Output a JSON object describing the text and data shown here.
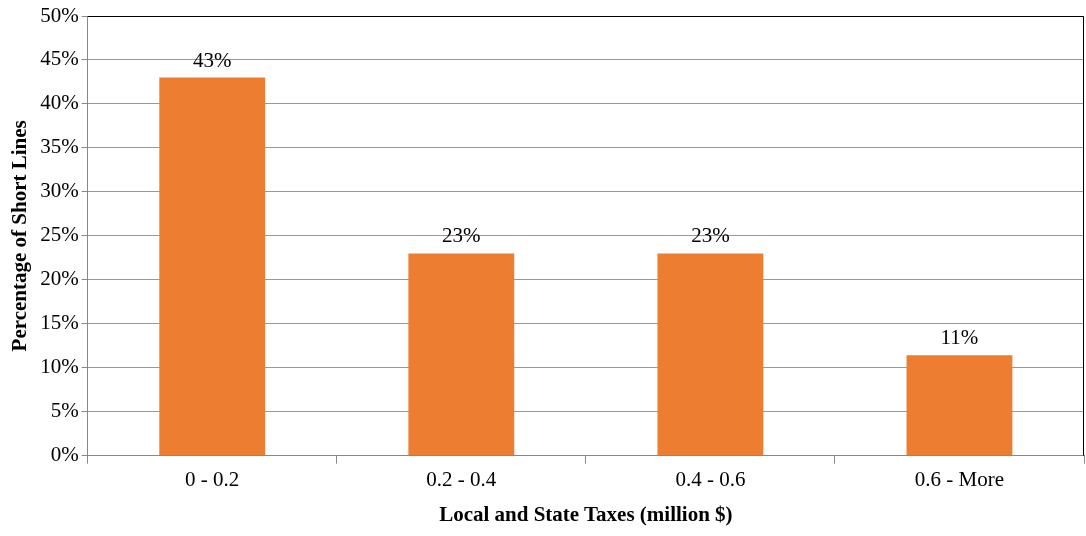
{
  "chart_data": {
    "type": "bar",
    "xlabel": "Local and State Taxes (million $)",
    "ylabel": "Percentage of Short Lines",
    "categories": [
      "0 - 0.2",
      "0.2 - 0.4",
      "0.4 - 0.6",
      "0.6 - More"
    ],
    "values": [
      43,
      23,
      23,
      11.4
    ],
    "value_labels": [
      "43%",
      "23%",
      "23%",
      "11%"
    ],
    "color": "#ed7d31",
    "grid": "y",
    "legend": false,
    "ylim": [
      0,
      50
    ],
    "yticks": [
      {
        "value": 0,
        "label": "0%"
      },
      {
        "value": 5,
        "label": "5%"
      },
      {
        "value": 10,
        "label": "10%"
      },
      {
        "value": 15,
        "label": "15%"
      },
      {
        "value": 20,
        "label": "20%"
      },
      {
        "value": 25,
        "label": "25%"
      },
      {
        "value": 30,
        "label": "30%"
      },
      {
        "value": 35,
        "label": "35%"
      },
      {
        "value": 40,
        "label": "40%"
      },
      {
        "value": 45,
        "label": "45%"
      },
      {
        "value": 50,
        "label": "50%"
      }
    ]
  }
}
